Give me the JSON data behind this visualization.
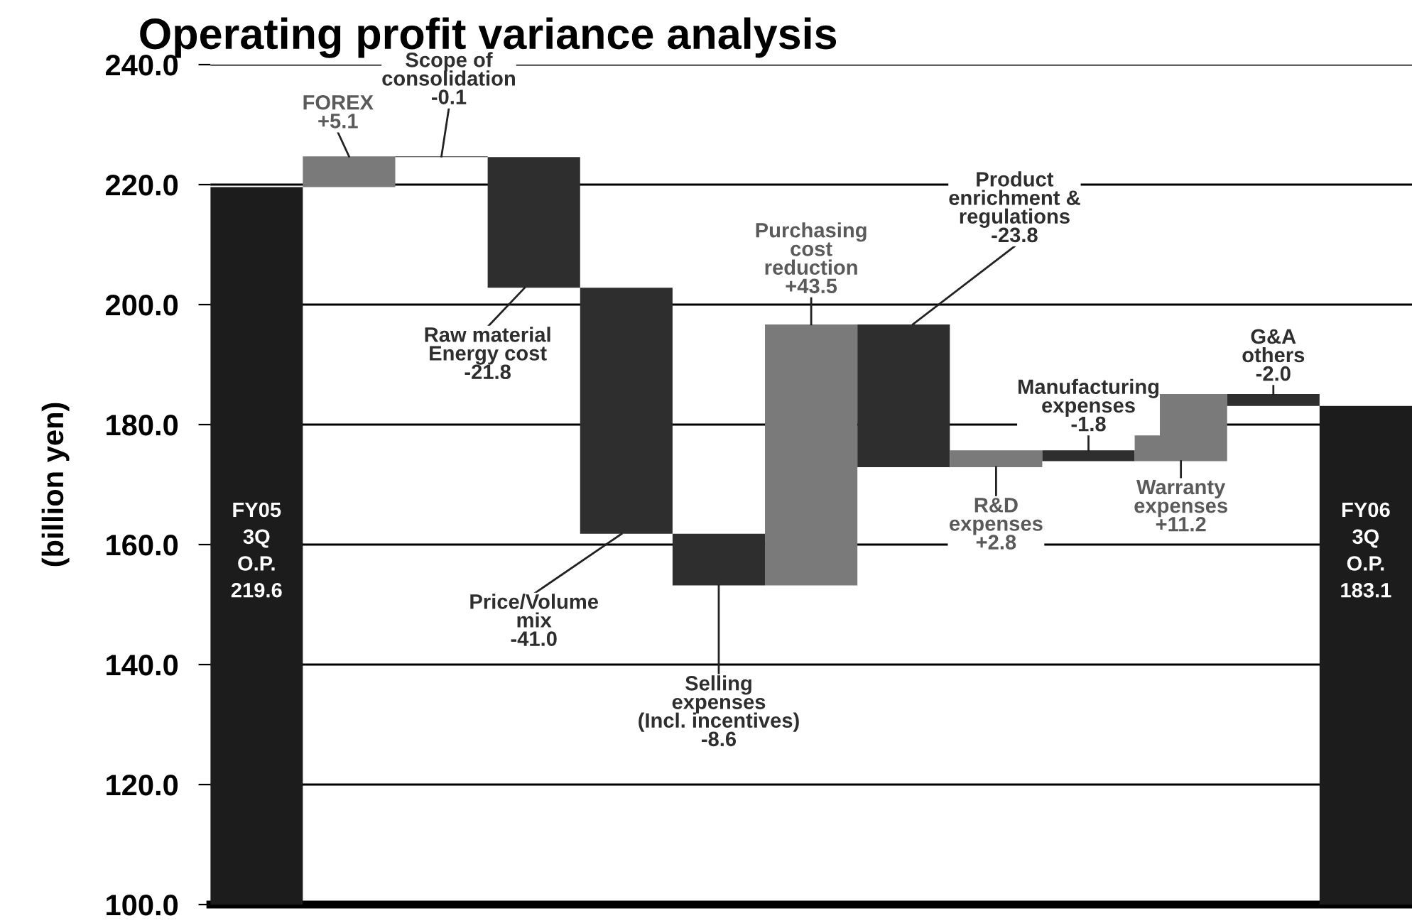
{
  "chart_data": {
    "type": "bar",
    "title": "Operating profit variance analysis",
    "ylabel": "(billion yen)",
    "categories": [
      null,
      null,
      null,
      null,
      null,
      null,
      null,
      null,
      null,
      null,
      null,
      null,
      null
    ],
    "values": [
      219.6,
      5.1,
      -0.1,
      -21.8,
      -41.0,
      -8.6,
      43.5,
      -23.8,
      2.8,
      -1.8,
      11.2,
      -2.0,
      183.1
    ],
    "base": [
      null,
      219.6,
      224.7,
      224.6,
      202.8,
      161.8,
      153.2,
      196.7,
      172.9,
      175.7,
      173.9,
      185.1,
      null
    ],
    "annotations": [
      "FY05\n3Q\nO.P.\n219.6",
      "FOREX\n+5.1",
      "Scope of\nconsolidation\n-0.1",
      "Raw material\nEnergy cost\n-21.8",
      "Price/Volume\nmix\n-41.0",
      "Selling\nexpenses\n(Incl. incentives)\n-8.6",
      "Purchasing\ncost\nreduction\n+43.5",
      "Product\nenrichment &\nregulations\n-23.8",
      "R&D\nexpenses\n+2.8",
      "Manufacturing\nexpenses\n-1.8",
      "Warranty\nexpenses\n+11.2",
      "G&A\nothers\n-2.0",
      "FY06\n3Q\nO.P.\n183.1"
    ],
    "colors": [
      "#1c1c1c",
      "#7a7a7a",
      "#2e2e2e",
      "#2e2e2e",
      "#2e2e2e",
      "#2e2e2e",
      "#7a7a7a",
      "#2e2e2e",
      "#7a7a7a",
      "#2e2e2e",
      "#7a7a7a",
      "#2e2e2e",
      "#1c1c1c"
    ],
    "ylim": [
      100,
      240
    ],
    "yticks": [
      {
        "value": 100,
        "label": "100.0"
      },
      {
        "value": 120,
        "label": "120.0"
      },
      {
        "value": 140,
        "label": "140.0"
      },
      {
        "value": 160,
        "label": "160.0"
      },
      {
        "value": 180,
        "label": "180.0"
      },
      {
        "value": 200,
        "label": "200.0"
      },
      {
        "value": 220,
        "label": "220.0"
      },
      {
        "value": 240,
        "label": "240.0"
      }
    ],
    "grid": "y"
  }
}
